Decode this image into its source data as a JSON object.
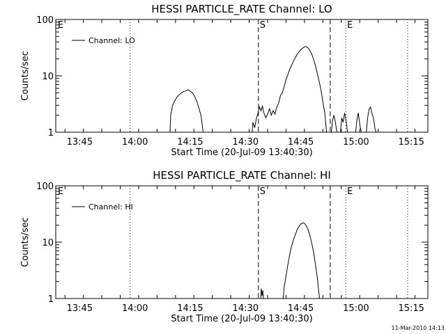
{
  "footer": {
    "timestamp": "11-Mar-2010 14:13"
  },
  "chart_data": [
    {
      "type": "line",
      "title": "HESSI PARTICLE_RATE Channel: LO",
      "xlabel": "Start Time (20-Jul-09 13:40:30)",
      "ylabel": "Counts/sec",
      "yscale": "log",
      "ylim": [
        1,
        100
      ],
      "xlim_min": [
        -2.0,
        99.0
      ],
      "y_ticks": [
        "1",
        "10",
        "100"
      ],
      "x_ticks": [
        {
          "label": "13:45",
          "min": 4.5
        },
        {
          "label": "14:00",
          "min": 19.5
        },
        {
          "label": "14:15",
          "min": 34.5
        },
        {
          "label": "14:30",
          "min": 49.5
        },
        {
          "label": "14:45",
          "min": 64.5
        },
        {
          "label": "15:00",
          "min": 79.5
        },
        {
          "label": "15:15",
          "min": 94.5
        }
      ],
      "legend": {
        "position": "top-left",
        "entries": [
          "Channel: LO"
        ]
      },
      "markers": [
        {
          "label": "E",
          "min": -2.0,
          "style": "dotted"
        },
        {
          "label": "",
          "min": 18.2,
          "style": "dotted"
        },
        {
          "label": "S",
          "min": 53.0,
          "style": "dashed"
        },
        {
          "label": "",
          "min": 72.5,
          "style": "dashed"
        },
        {
          "label": "E",
          "min": 76.7,
          "style": "dotted"
        },
        {
          "label": "",
          "min": 93.5,
          "style": "dotted"
        }
      ],
      "series": [
        {
          "name": "Channel: LO",
          "segments": [
            [
              [
                29.0,
                1
              ],
              [
                29.2,
                2.0
              ],
              [
                29.7,
                3.0
              ],
              [
                30.3,
                3.6
              ],
              [
                30.9,
                4.2
              ],
              [
                31.5,
                4.6
              ],
              [
                32.1,
                5.0
              ],
              [
                32.7,
                5.3
              ],
              [
                33.3,
                5.4
              ],
              [
                33.9,
                5.7
              ],
              [
                34.5,
                5.3
              ],
              [
                35.1,
                5.0
              ],
              [
                35.7,
                4.3
              ],
              [
                36.3,
                3.5
              ],
              [
                36.9,
                2.6
              ],
              [
                37.4,
                2.0
              ],
              [
                37.8,
                1.3
              ],
              [
                38.0,
                1
              ]
            ],
            [
              [
                51.3,
                1
              ],
              [
                51.5,
                1.5
              ],
              [
                52.0,
                1.2
              ],
              [
                52.5,
                1.8
              ],
              [
                52.9,
                2.2
              ],
              [
                53.3,
                2.8
              ],
              [
                53.7,
                2.4
              ],
              [
                54.1,
                2.9
              ],
              [
                54.5,
                2.2
              ],
              [
                55.0,
                1.8
              ],
              [
                55.5,
                2.1
              ],
              [
                56.0,
                2.6
              ],
              [
                56.5,
                2.0
              ],
              [
                57.0,
                2.4
              ],
              [
                57.5,
                2.1
              ],
              [
                58.0,
                2.8
              ],
              [
                58.5,
                3.3
              ],
              [
                59.0,
                4.5
              ],
              [
                59.5,
                5.0
              ],
              [
                60.0,
                6.5
              ],
              [
                60.5,
                8.5
              ],
              [
                61.0,
                10.5
              ],
              [
                61.5,
                13.0
              ],
              [
                62.0,
                15.5
              ],
              [
                62.5,
                18.0
              ],
              [
                63.0,
                21.0
              ],
              [
                63.5,
                24.0
              ],
              [
                64.0,
                26.5
              ],
              [
                64.5,
                29.0
              ],
              [
                65.0,
                31.0
              ],
              [
                65.5,
                32.5
              ],
              [
                66.0,
                33.0
              ],
              [
                66.5,
                31.0
              ],
              [
                67.0,
                28.0
              ],
              [
                67.5,
                24.0
              ],
              [
                68.0,
                19.5
              ],
              [
                68.5,
                15.0
              ],
              [
                69.0,
                11.0
              ],
              [
                69.5,
                8.0
              ],
              [
                70.0,
                5.5
              ],
              [
                70.5,
                3.5
              ],
              [
                71.0,
                2.2
              ],
              [
                71.3,
                1.4
              ],
              [
                71.5,
                1
              ]
            ],
            [
              [
                72.8,
                1
              ],
              [
                73.1,
                1.6
              ],
              [
                73.5,
                2.0
              ],
              [
                73.9,
                1.5
              ],
              [
                74.3,
                1
              ]
            ],
            [
              [
                75.3,
                1
              ],
              [
                75.6,
                1.8
              ],
              [
                76.0,
                1.5
              ],
              [
                76.4,
                2.2
              ],
              [
                76.8,
                1.6
              ],
              [
                77.2,
                1
              ]
            ],
            [
              [
                79.4,
                1
              ],
              [
                79.7,
                1.6
              ],
              [
                80.1,
                2.2
              ],
              [
                80.5,
                1.4
              ],
              [
                80.9,
                1
              ]
            ],
            [
              [
                82.3,
                1
              ],
              [
                82.6,
                1.7
              ],
              [
                83.0,
                2.5
              ],
              [
                83.4,
                2.8
              ],
              [
                83.8,
                2.2
              ],
              [
                84.2,
                1.8
              ],
              [
                84.6,
                1.2
              ],
              [
                84.9,
                1
              ]
            ]
          ]
        }
      ]
    },
    {
      "type": "line",
      "title": "HESSI PARTICLE_RATE Channel: HI",
      "xlabel": "Start Time (20-Jul-09 13:40:30)",
      "ylabel": "Counts/sec",
      "yscale": "log",
      "ylim": [
        1,
        100
      ],
      "xlim_min": [
        -2.0,
        99.0
      ],
      "y_ticks": [
        "1",
        "10",
        "100"
      ],
      "x_ticks": [
        {
          "label": "13:45",
          "min": 4.5
        },
        {
          "label": "14:00",
          "min": 19.5
        },
        {
          "label": "14:15",
          "min": 34.5
        },
        {
          "label": "14:30",
          "min": 49.5
        },
        {
          "label": "14:45",
          "min": 64.5
        },
        {
          "label": "15:00",
          "min": 79.5
        },
        {
          "label": "15:15",
          "min": 94.5
        }
      ],
      "legend": {
        "position": "top-left",
        "entries": [
          "Channel: HI"
        ]
      },
      "markers": [
        {
          "label": "E",
          "min": -2.0,
          "style": "dotted"
        },
        {
          "label": "",
          "min": 18.2,
          "style": "dotted"
        },
        {
          "label": "S",
          "min": 53.0,
          "style": "dashed"
        },
        {
          "label": "",
          "min": 72.5,
          "style": "dashed"
        },
        {
          "label": "E",
          "min": 76.7,
          "style": "dotted"
        },
        {
          "label": "",
          "min": 93.5,
          "style": "dotted"
        }
      ],
      "series": [
        {
          "name": "Channel: HI",
          "segments": [
            [
              [
                53.6,
                1
              ],
              [
                53.8,
                1.5
              ],
              [
                54.0,
                1.1
              ],
              [
                54.2,
                1.4
              ],
              [
                54.4,
                1
              ]
            ],
            [
              [
                59.7,
                1
              ],
              [
                60.0,
                1.6
              ],
              [
                60.5,
                2.5
              ],
              [
                61.0,
                4.0
              ],
              [
                61.5,
                6.0
              ],
              [
                62.0,
                8.5
              ],
              [
                62.5,
                11.0
              ],
              [
                63.0,
                13.5
              ],
              [
                63.5,
                16.5
              ],
              [
                64.0,
                19.0
              ],
              [
                64.5,
                21.0
              ],
              [
                65.0,
                22.0
              ],
              [
                65.5,
                21.5
              ],
              [
                66.0,
                19.5
              ],
              [
                66.5,
                16.5
              ],
              [
                67.0,
                13.0
              ],
              [
                67.5,
                9.5
              ],
              [
                68.0,
                6.5
              ],
              [
                68.5,
                4.0
              ],
              [
                69.0,
                2.3
              ],
              [
                69.4,
                1.3
              ],
              [
                69.6,
                1
              ]
            ]
          ]
        }
      ]
    }
  ]
}
